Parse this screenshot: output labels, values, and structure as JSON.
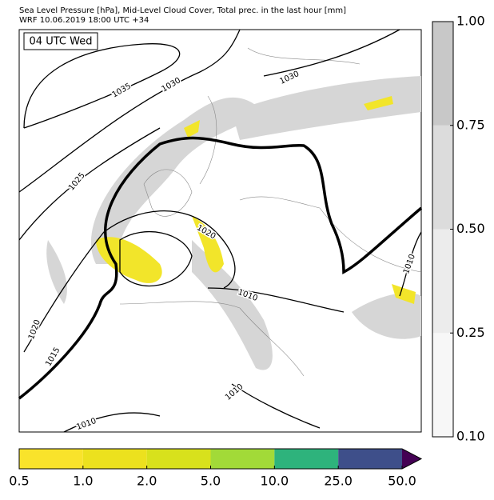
{
  "header": {
    "title": "Sea Level Pressure [hPa], Mid-Level Cloud Cover, Total prec. in the last hour [mm]",
    "subtitle": "WRF 10.06.2019 18:00 UTC +34"
  },
  "map": {
    "time_label": "04 UTC Wed",
    "contour_labels": [
      "1035",
      "1030",
      "1030",
      "1025",
      "1020",
      "1020",
      "1015",
      "1010",
      "1010",
      "1010",
      "1010"
    ]
  },
  "cloud_colorbar": {
    "ticks": [
      {
        "value": 0.1,
        "label": "0.10"
      },
      {
        "value": 0.25,
        "label": "0.25"
      },
      {
        "value": 0.5,
        "label": "0.50"
      },
      {
        "value": 0.75,
        "label": "0.75"
      },
      {
        "value": 1.0,
        "label": "1.00"
      }
    ],
    "colors": [
      "#f7f7f7",
      "#ececec",
      "#dcdcdc",
      "#c8c8c8"
    ]
  },
  "precip_colorbar": {
    "ticks": [
      {
        "value": 0.5,
        "label": "0.5"
      },
      {
        "value": 1.0,
        "label": "1.0"
      },
      {
        "value": 2.0,
        "label": "2.0"
      },
      {
        "value": 5.0,
        "label": "5.0"
      },
      {
        "value": 10.0,
        "label": "10.0"
      },
      {
        "value": 25.0,
        "label": "25.0"
      },
      {
        "value": 50.0,
        "label": "50.0"
      }
    ],
    "colors": [
      "#f9e32b",
      "#ece11e",
      "#d8e11c",
      "#a2da38",
      "#2eb37c",
      "#3e4f8a"
    ],
    "extend_color": "#440154"
  }
}
